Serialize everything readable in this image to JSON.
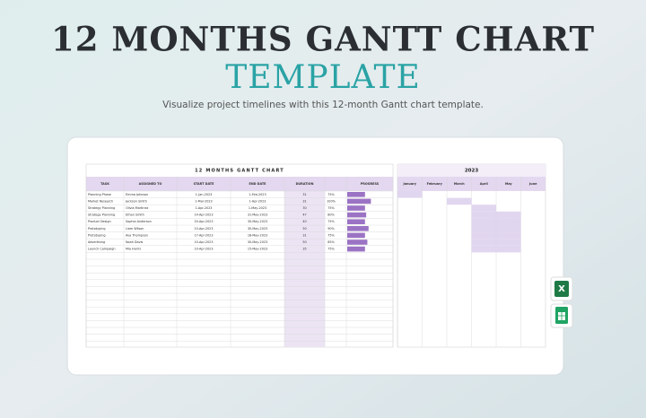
{
  "header": {
    "title": "12 MONTHS GANTT CHART",
    "title2": "TEMPLATE",
    "subtitle": "Visualize project timelines with this 12-month Gantt chart template."
  },
  "sheet": {
    "title": "12 MONTHS GANTT CHART",
    "columns": [
      "TASK",
      "ASSIGNED TO",
      "START DATE",
      "END DATE",
      "DURATION",
      "PROGRESS"
    ],
    "rows": [
      [
        "Planning Phase",
        "Emma Johnson",
        "1-Jan-2023",
        "1-Feb-2023",
        31,
        "75%"
      ],
      [
        "Market Research",
        "Jackson Smith",
        "1-Mar-2023",
        "1-Apr-2023",
        31,
        "100%"
      ],
      [
        "Strategy Planning",
        "Olivia Martinez",
        "1-Apr-2023",
        "1-May-2023",
        30,
        "75%"
      ],
      [
        "Strategy Planning",
        "Ethan Smith",
        "14-Apr-2023",
        "31-May-2023",
        47,
        "80%"
      ],
      [
        "Product Design",
        "Sophia Anderson",
        "20-Apr-2023",
        "30-May-2023",
        40,
        "75%"
      ],
      [
        "Prototyping",
        "Liam Wilson",
        "10-Apr-2023",
        "30-May-2023",
        50,
        "90%"
      ],
      [
        "Prototyping",
        "Ava Thompson",
        "17-Apr-2023",
        "18-May-2023",
        31,
        "75%"
      ],
      [
        "Advertising",
        "Noah Davis",
        "10-Apr-2023",
        "30-May-2023",
        50,
        "85%"
      ],
      [
        "Launch Campaign",
        "Mia Harris",
        "10-Apr-2023",
        "15-May-2023",
        35,
        "75%"
      ]
    ]
  },
  "gantt": {
    "year": "2023",
    "months": [
      "January",
      "February",
      "March",
      "April",
      "May",
      "June"
    ]
  }
}
